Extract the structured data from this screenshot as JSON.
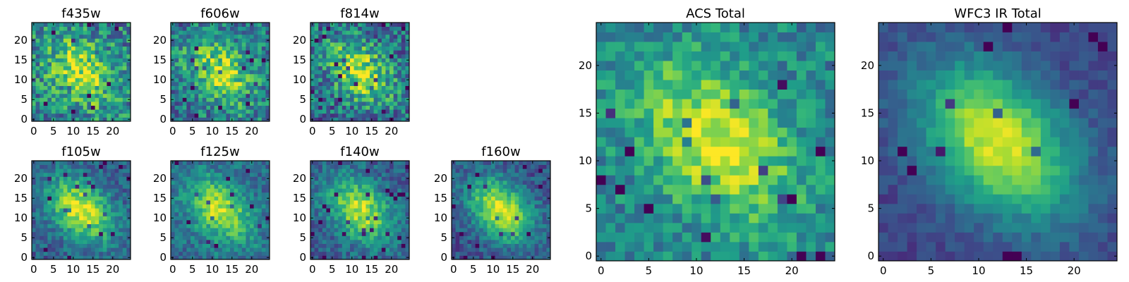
{
  "figure": {
    "description_free": true
  },
  "chart_data": [
    {
      "type": "heatmap",
      "title": "f435w",
      "xticks": [
        "0",
        "5",
        "10",
        "15",
        "20"
      ],
      "yticks": [
        "0",
        "5",
        "10",
        "15",
        "20"
      ],
      "xlim": [
        0,
        25
      ],
      "ylim": [
        0,
        25
      ],
      "grid_size": 25,
      "colormap": "viridis"
    },
    {
      "type": "heatmap",
      "title": "f606w",
      "xticks": [
        "0",
        "5",
        "10",
        "15",
        "20"
      ],
      "yticks": [
        "0",
        "5",
        "10",
        "15",
        "20"
      ],
      "xlim": [
        0,
        25
      ],
      "ylim": [
        0,
        25
      ],
      "grid_size": 25,
      "colormap": "viridis"
    },
    {
      "type": "heatmap",
      "title": "f814w",
      "xticks": [
        "0",
        "5",
        "10",
        "15",
        "20"
      ],
      "yticks": [
        "0",
        "5",
        "10",
        "15",
        "20"
      ],
      "xlim": [
        0,
        25
      ],
      "ylim": [
        0,
        25
      ],
      "grid_size": 25,
      "colormap": "viridis"
    },
    {
      "type": "heatmap",
      "title": "f105w",
      "xticks": [
        "0",
        "5",
        "10",
        "15",
        "20"
      ],
      "yticks": [
        "0",
        "5",
        "10",
        "15",
        "20"
      ],
      "xlim": [
        0,
        25
      ],
      "ylim": [
        0,
        25
      ],
      "grid_size": 25,
      "colormap": "viridis"
    },
    {
      "type": "heatmap",
      "title": "f125w",
      "xticks": [
        "0",
        "5",
        "10",
        "15",
        "20"
      ],
      "yticks": [
        "0",
        "5",
        "10",
        "15",
        "20"
      ],
      "xlim": [
        0,
        25
      ],
      "ylim": [
        0,
        25
      ],
      "grid_size": 25,
      "colormap": "viridis"
    },
    {
      "type": "heatmap",
      "title": "f140w",
      "xticks": [
        "0",
        "5",
        "10",
        "15",
        "20"
      ],
      "yticks": [
        "0",
        "5",
        "10",
        "15",
        "20"
      ],
      "xlim": [
        0,
        25
      ],
      "ylim": [
        0,
        25
      ],
      "grid_size": 25,
      "colormap": "viridis"
    },
    {
      "type": "heatmap",
      "title": "f160w",
      "xticks": [
        "0",
        "5",
        "10",
        "15",
        "20"
      ],
      "yticks": [
        "0",
        "5",
        "10",
        "15",
        "20"
      ],
      "xlim": [
        0,
        25
      ],
      "ylim": [
        0,
        25
      ],
      "grid_size": 25,
      "colormap": "viridis"
    },
    {
      "type": "heatmap",
      "title": "ACS Total",
      "xticks": [
        "0",
        "5",
        "10",
        "15",
        "20"
      ],
      "yticks": [
        "0",
        "5",
        "10",
        "15",
        "20"
      ],
      "xlim": [
        0,
        25
      ],
      "ylim": [
        0,
        25
      ],
      "grid_size": 25,
      "colormap": "viridis"
    },
    {
      "type": "heatmap",
      "title": "WFC3 IR Total",
      "xticks": [
        "0",
        "5",
        "10",
        "15",
        "20"
      ],
      "yticks": [
        "0",
        "5",
        "10",
        "15",
        "20"
      ],
      "xlim": [
        0,
        25
      ],
      "ylim": [
        0,
        25
      ],
      "grid_size": 25,
      "colormap": "viridis"
    }
  ]
}
